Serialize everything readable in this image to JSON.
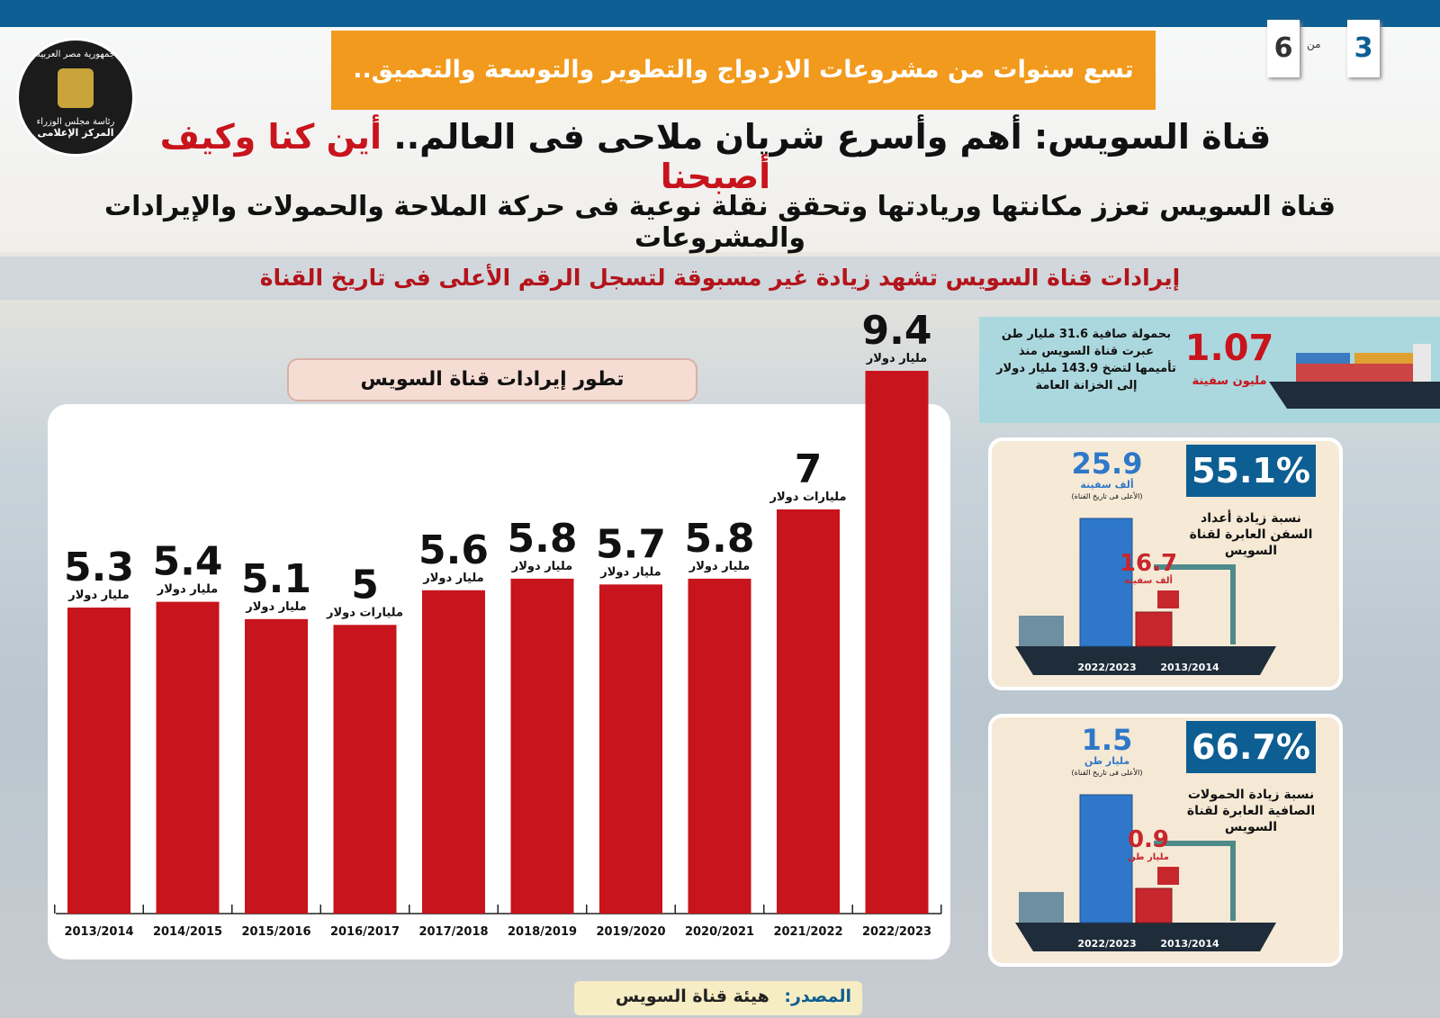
{
  "header": {
    "page": "3",
    "of": "من",
    "total": "6",
    "logo": [
      "جمهورية مصر العربية",
      "رئاسة مجلس الوزراء",
      "المركز الإعلامى"
    ],
    "tagline": "تسع سنوات من مشروعات الازدواج والتطوير والتوسعة والتعميق..",
    "title_main": "قناة السويس: أهم وأسرع شريان ملاحى فى العالم..",
    "title_highlight": "أين كنا وكيف أصبحنا",
    "subtitle": "قناة السويس تعزز مكانتها وريادتها وتحقق نقلة نوعية فى حركة الملاحة والحمولات والإيرادات والمشروعات",
    "headline": "إيرادات قناة السويس تشهد زيادة غير مسبوقة لتسجل الرقم الأعلى فى تاريخ القناة"
  },
  "chart_data": {
    "type": "bar",
    "title": "تطور إيرادات قناة السويس",
    "categories": [
      "2013/2014",
      "2014/2015",
      "2015/2016",
      "2016/2017",
      "2017/2018",
      "2018/2019",
      "2019/2020",
      "2020/2021",
      "2021/2022",
      "2022/2023"
    ],
    "values": [
      5.3,
      5.4,
      5.1,
      5,
      5.6,
      5.8,
      5.7,
      5.8,
      7,
      9.4
    ],
    "unit_labels": [
      "مليار دولار",
      "مليار دولار",
      "مليار دولار",
      "مليارات دولار",
      "مليار دولار",
      "مليار دولار",
      "مليار دولار",
      "مليار دولار",
      "مليارات دولار",
      "مليار دولار"
    ],
    "color": "#c8141c"
  },
  "summary": {
    "value": "1.07",
    "unit": "مليون سفينة",
    "lines": [
      "بحمولة صافية 31.6 مليار طن",
      "عبرت قناة السويس منذ",
      "تأميمها لتضخ 143.9 مليار دولار",
      "إلى الخزانة العامة"
    ]
  },
  "panels": [
    {
      "percent": "55.1%",
      "lines": [
        "نسبة زيادة أعداد",
        "السفن العابرة لقناة",
        "السويس"
      ],
      "high": "25.9",
      "high_unit": "ألف سفينة",
      "note": "(الأعلى فى تاريخ القناة)",
      "low": "16.7",
      "low_unit": "ألف سفينة",
      "years": [
        "2022/2023",
        "2013/2014"
      ]
    },
    {
      "percent": "66.7%",
      "lines": [
        "نسبة زيادة الحمولات",
        "الصافية العابرة لقناة",
        "السويس"
      ],
      "high": "1.5",
      "high_unit": "مليار طن",
      "note": "(الأعلى فى تاريخ القناة)",
      "low": "0.9",
      "low_unit": "مليار طن",
      "years": [
        "2022/2023",
        "2013/2014"
      ]
    }
  ],
  "source": {
    "label": "المصدر:",
    "text": "هيئة قناة السويس"
  }
}
